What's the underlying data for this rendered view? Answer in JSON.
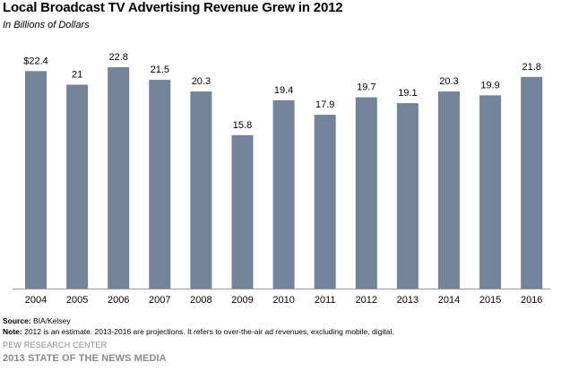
{
  "chart_data": {
    "type": "bar",
    "title": "Local Broadcast  TV Advertising  Revenue  Grew in 2012",
    "subtitle": "In Billions of Dollars",
    "categories": [
      "2004",
      "2005",
      "2006",
      "2007",
      "2008",
      "2009",
      "2010",
      "2011",
      "2012",
      "2013",
      "2014",
      "2015",
      "2016"
    ],
    "values": [
      22.4,
      21,
      22.8,
      21.5,
      20.3,
      15.8,
      19.4,
      17.9,
      19.7,
      19.1,
      20.3,
      19.9,
      21.8
    ],
    "value_labels": [
      "$22.4",
      "21",
      "22.8",
      "21.5",
      "20.3",
      "15.8",
      "19.4",
      "17.9",
      "19.7",
      "19.1",
      "20.3",
      "19.9",
      "21.8"
    ],
    "ylim": [
      0,
      22.8
    ],
    "grid": false,
    "bar_color": "#72839a"
  },
  "footer": {
    "source_label": "Source:",
    "source_text": " BIA/Kelsey",
    "note_label": "Note:",
    "note_text": " 2012 is an estimate. 2013-2016 are projections. It refers to over-the-air ad revenues, excluding mobile, digital.",
    "org": "PEW RESEARCH CENTER",
    "report": "2013 STATE OF THE NEWS MEDIA"
  }
}
